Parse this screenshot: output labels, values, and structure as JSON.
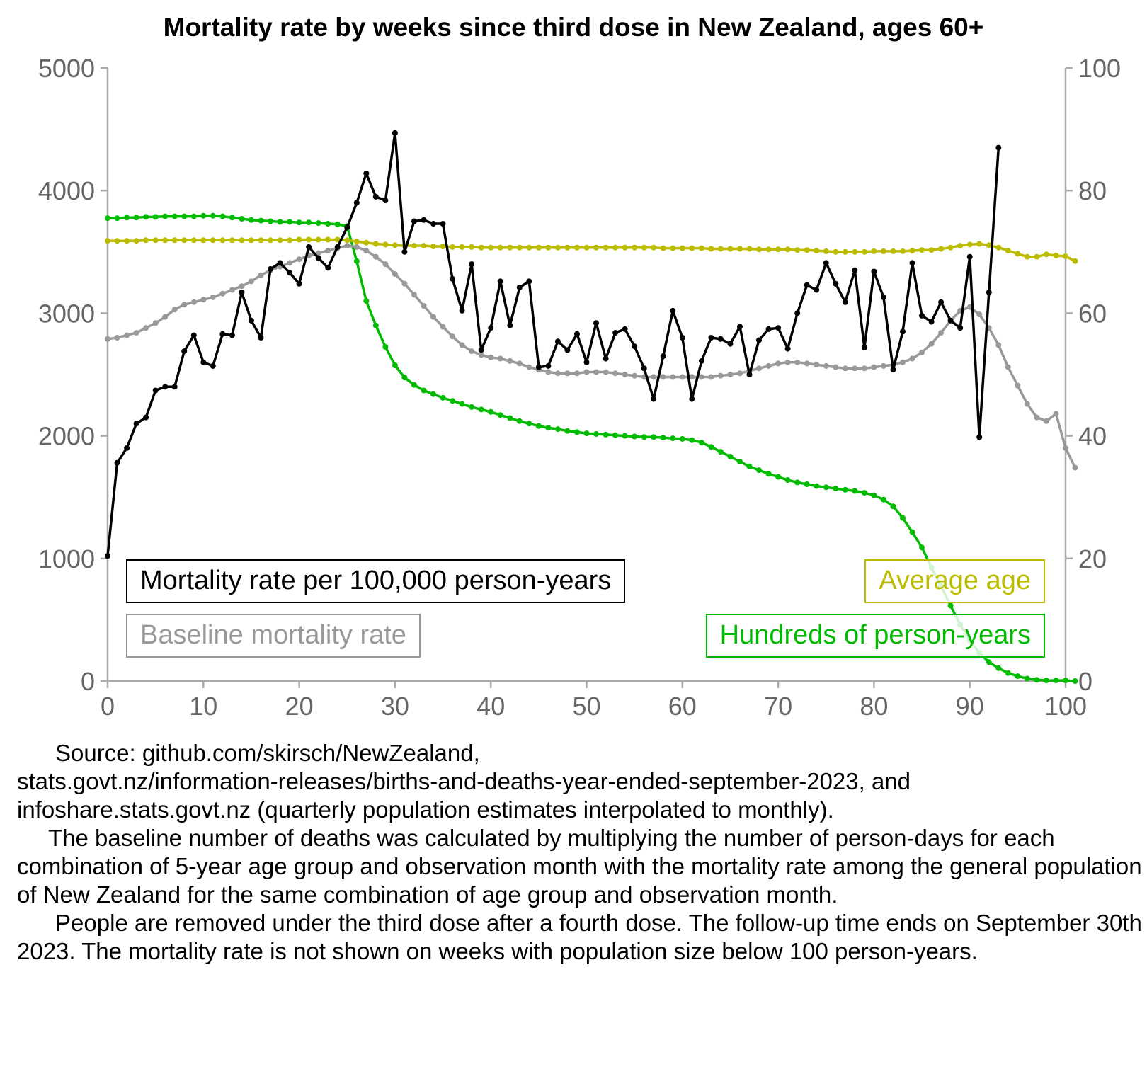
{
  "chart_data": {
    "type": "line",
    "title": "Mortality rate by weeks since third dose in New Zealand, ages 60+",
    "xlabel": "",
    "ylabel_left": "",
    "ylabel_right": "",
    "xlim": [
      0,
      100
    ],
    "ylim_left": [
      0,
      5000
    ],
    "ylim_right": [
      0,
      100
    ],
    "x_ticks": [
      "0",
      "10",
      "20",
      "30",
      "40",
      "50",
      "60",
      "70",
      "80",
      "90",
      "100"
    ],
    "y_left_ticks": [
      "0",
      "1000",
      "2000",
      "3000",
      "4000",
      "5000"
    ],
    "y_right_ticks": [
      "0",
      "20",
      "40",
      "60",
      "80",
      "100"
    ],
    "legend_position": "inside, bottom",
    "series": [
      {
        "name": "Mortality rate per 100,000 person-years",
        "axis": "left",
        "color": "#000000",
        "x": [
          0,
          1,
          2,
          3,
          4,
          5,
          6,
          7,
          8,
          9,
          10,
          11,
          12,
          13,
          14,
          15,
          16,
          17,
          18,
          19,
          20,
          21,
          22,
          23,
          24,
          25,
          26,
          27,
          28,
          29,
          30,
          31,
          32,
          33,
          34,
          35,
          36,
          37,
          38,
          39,
          40,
          41,
          42,
          43,
          44,
          45,
          46,
          47,
          48,
          49,
          50,
          51,
          52,
          53,
          54,
          55,
          56,
          57,
          58,
          59,
          60,
          61,
          62,
          63,
          64,
          65,
          66,
          67,
          68,
          69,
          70,
          71,
          72,
          73,
          74,
          75,
          76,
          77,
          78,
          79,
          80,
          81,
          82,
          83,
          84,
          85,
          86,
          87,
          88,
          89,
          90,
          91,
          92,
          93
        ],
        "values": [
          1020,
          1780,
          1900,
          2100,
          2150,
          2370,
          2400,
          2400,
          2690,
          2820,
          2600,
          2570,
          2830,
          2820,
          3170,
          2940,
          2800,
          3360,
          3410,
          3330,
          3240,
          3540,
          3450,
          3370,
          3540,
          3700,
          3900,
          4140,
          3950,
          3920,
          4470,
          3500,
          3750,
          3760,
          3730,
          3730,
          3280,
          3020,
          3400,
          2700,
          2880,
          3260,
          2900,
          3210,
          3260,
          2560,
          2570,
          2770,
          2700,
          2830,
          2600,
          2920,
          2630,
          2840,
          2870,
          2730,
          2550,
          2300,
          2650,
          3020,
          2800,
          2300,
          2610,
          2800,
          2790,
          2750,
          2890,
          2500,
          2780,
          2870,
          2880,
          2710,
          3000,
          3230,
          3190,
          3410,
          3240,
          3090,
          3350,
          2720,
          3340,
          3130,
          2540,
          2850,
          3410,
          2980,
          2930,
          3090,
          2940,
          2880,
          3460,
          1990,
          3170,
          4350
        ]
      },
      {
        "name": "Baseline mortality rate",
        "axis": "left",
        "color": "#999999",
        "values": [
          2790,
          2800,
          2820,
          2840,
          2880,
          2920,
          2970,
          3030,
          3070,
          3090,
          3110,
          3130,
          3160,
          3190,
          3220,
          3260,
          3310,
          3350,
          3380,
          3410,
          3440,
          3470,
          3490,
          3510,
          3530,
          3550,
          3540,
          3510,
          3460,
          3400,
          3320,
          3240,
          3150,
          3060,
          2970,
          2890,
          2810,
          2740,
          2690,
          2660,
          2640,
          2630,
          2610,
          2590,
          2560,
          2540,
          2520,
          2510,
          2510,
          2510,
          2520,
          2520,
          2520,
          2510,
          2500,
          2490,
          2480,
          2480,
          2480,
          2480,
          2480,
          2480,
          2480,
          2480,
          2490,
          2500,
          2510,
          2530,
          2550,
          2570,
          2590,
          2600,
          2600,
          2590,
          2580,
          2570,
          2560,
          2550,
          2550,
          2550,
          2560,
          2570,
          2580,
          2600,
          2630,
          2680,
          2750,
          2840,
          2940,
          3020,
          3050,
          2990,
          2880,
          2740,
          2560,
          2410,
          2260,
          2150,
          2120,
          2180,
          1900,
          1740
        ]
      },
      {
        "name": "Average age",
        "axis": "right",
        "color": "#bbbb00",
        "values": [
          71.8,
          71.8,
          71.8,
          71.8,
          71.9,
          71.9,
          71.9,
          71.9,
          71.9,
          71.9,
          71.9,
          71.9,
          71.9,
          71.9,
          71.9,
          71.9,
          71.9,
          71.9,
          71.9,
          71.9,
          72.0,
          72.0,
          72.0,
          72.0,
          72.0,
          71.9,
          71.7,
          71.5,
          71.3,
          71.2,
          71.1,
          71.0,
          71.0,
          71.0,
          70.9,
          70.9,
          70.8,
          70.8,
          70.8,
          70.7,
          70.7,
          70.7,
          70.7,
          70.7,
          70.7,
          70.7,
          70.7,
          70.7,
          70.7,
          70.7,
          70.7,
          70.7,
          70.7,
          70.7,
          70.7,
          70.7,
          70.7,
          70.7,
          70.6,
          70.6,
          70.6,
          70.6,
          70.6,
          70.5,
          70.5,
          70.5,
          70.5,
          70.5,
          70.4,
          70.4,
          70.4,
          70.4,
          70.3,
          70.3,
          70.2,
          70.1,
          70.0,
          70.0,
          70.0,
          70.0,
          70.1,
          70.1,
          70.1,
          70.1,
          70.2,
          70.3,
          70.3,
          70.5,
          70.7,
          71.0,
          71.2,
          71.3,
          71.1,
          70.7,
          70.2,
          69.7,
          69.2,
          69.2,
          69.6,
          69.4,
          69.3,
          68.5
        ]
      },
      {
        "name": "Hundreds of person-years",
        "axis": "right",
        "color": "#00bb00",
        "values": [
          75.5,
          75.5,
          75.6,
          75.6,
          75.7,
          75.7,
          75.8,
          75.8,
          75.8,
          75.8,
          75.9,
          75.9,
          75.8,
          75.6,
          75.4,
          75.2,
          75.1,
          75.0,
          74.9,
          74.9,
          74.8,
          74.8,
          74.7,
          74.6,
          74.5,
          74.2,
          68.5,
          62.0,
          58.0,
          54.5,
          51.5,
          49.5,
          48.3,
          47.4,
          46.8,
          46.2,
          45.7,
          45.2,
          44.7,
          44.3,
          43.9,
          43.4,
          42.9,
          42.4,
          42.0,
          41.6,
          41.3,
          41.1,
          40.8,
          40.6,
          40.4,
          40.3,
          40.2,
          40.1,
          40.0,
          39.9,
          39.8,
          39.8,
          39.7,
          39.6,
          39.5,
          39.3,
          38.9,
          38.2,
          37.4,
          36.6,
          35.8,
          35.0,
          34.4,
          33.8,
          33.3,
          32.8,
          32.4,
          32.1,
          31.8,
          31.6,
          31.4,
          31.2,
          31.0,
          30.7,
          30.3,
          29.6,
          28.5,
          26.6,
          24.3,
          21.8,
          18.5,
          15.5,
          12.3,
          9.2,
          6.6,
          4.6,
          3.1,
          2.1,
          1.3,
          0.8,
          0.4,
          0.2,
          0.1,
          0.1,
          0.1,
          0.0
        ]
      }
    ]
  },
  "legend": {
    "mortality": "Mortality rate per 100,000 person-years",
    "baseline": "Baseline mortality rate",
    "average_age": "Average age",
    "person_years": "Hundreds of person-years"
  },
  "source_note": {
    "p1_line1": "Source: github.com/skirsch/NewZealand,",
    "p1_line2": "stats.govt.nz/information-releases/births-and-deaths-year-ended-september-2023, and",
    "p1_line3": "infoshare.stats.govt.nz (quarterly population estimates interpolated to monthly).",
    "p2": "The baseline number of deaths was calculated by multiplying the number of person-days for each combination of 5-year age group and observation month with the mortality rate among the general population of New Zealand for the same combination of age group and observation month.",
    "p3": "People are removed under the third dose after a fourth dose. The follow-up time ends on September 30th 2023. The mortality rate is not shown on weeks with population size below 100 person-years."
  },
  "colors": {
    "mortality": "#000000",
    "baseline": "#999999",
    "average_age": "#bbbb00",
    "person_years": "#00bb00",
    "axis": "#aaaaaa",
    "tick_label": "#666666"
  }
}
